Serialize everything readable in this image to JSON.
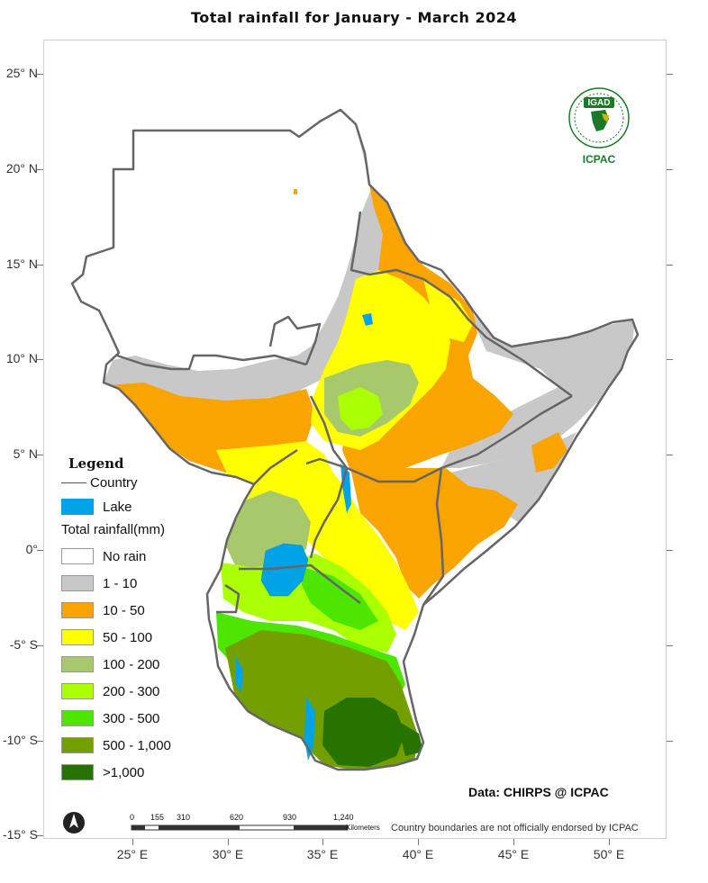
{
  "title": "Total rainfall  for  January - March  2024",
  "axes": {
    "lat_labels": [
      "25° N",
      "20° N",
      "15° N",
      "10° N",
      "5° N",
      "0°",
      "-5° S",
      "-10° S",
      "-15° S"
    ],
    "lon_labels": [
      "25° E",
      "30° E",
      "35° E",
      "40° E",
      "45° E",
      "50° E"
    ]
  },
  "legend": {
    "title": "Legend",
    "country_label": "Country",
    "lake_label": "Lake",
    "rainfall_title": "Total rainfall(mm)",
    "classes": [
      {
        "label": "No rain",
        "color": "#ffffff"
      },
      {
        "label": "1 - 10",
        "color": "#c8c8c8"
      },
      {
        "label": "10 - 50",
        "color": "#f9a400"
      },
      {
        "label": "50 - 100",
        "color": "#ffff00"
      },
      {
        "label": "100 - 200",
        "color": "#a8c96b"
      },
      {
        "label": "200 - 300",
        "color": "#aaff00"
      },
      {
        "label": "300 - 500",
        "color": "#4ce600"
      },
      {
        "label": "500 - 1,000",
        "color": "#73a000"
      },
      {
        "label": ">1,000",
        "color": "#267300"
      }
    ],
    "lake_color": "#00a3e6",
    "country_color": "#666666"
  },
  "scale_bar": {
    "ticks": [
      "0",
      "155",
      "310",
      "620",
      "930",
      "1,240"
    ],
    "unit": "Kilometers"
  },
  "credit": "Data: CHIRPS @ ICPAC",
  "disclaimer": "Country boundaries are not officially endorsed by ICPAC",
  "logo": {
    "top_text": "IGAD",
    "bottom_text": "ICPAC",
    "color": "#1a7a2a"
  }
}
